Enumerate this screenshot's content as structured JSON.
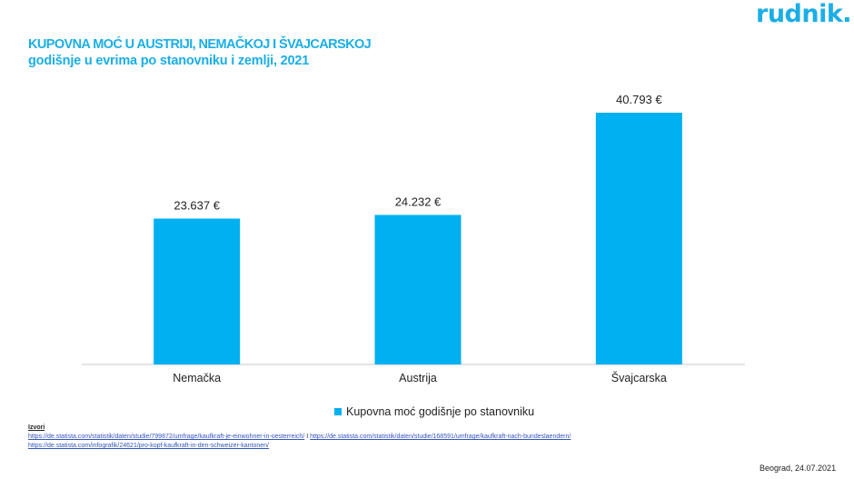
{
  "logo": "rudnik.",
  "title": "KUPOVNA MOĆ U AUSTRIJI, NEMAČKOJ I ŠVAJCARSKOJ",
  "subtitle": "godišnje u evrima po stanovniku i zemlji, 2021",
  "colors": {
    "accent": "#1aaee6",
    "bar": "#00b0f0",
    "axis": "#c8c8c8"
  },
  "chart_data": {
    "type": "bar",
    "categories": [
      "Nemačka",
      "Austrija",
      "Švajcarska"
    ],
    "series": [
      {
        "name": "Kupovna moć godišnje po stanovniku",
        "values": [
          23637,
          24232,
          40793
        ]
      }
    ],
    "data_labels": [
      "23.637 €",
      "24.232 €",
      "40.793 €"
    ],
    "ylim": [
      0,
      45000
    ],
    "grid": false,
    "legend": "bottom"
  },
  "legend_label": "Kupovna moć godišnje po stanovniku",
  "sources": {
    "label": "Izvori",
    "link1": "https://de.statista.com/statistik/daten/studie/799872/umfrage/kaufkraft-je-einwohner-in-oesterreich/",
    "separator": "I",
    "link2": "https://de.statista.com/statistik/daten/studie/168591/umfrage/kaufkraft-nach-bundeslaendern/",
    "link3": "https://de.statista.com/infografik/24621/pro-kopf-kaufkraft-in-den-schweizer-kantonen/"
  },
  "footer_date": "Beograd, 24.07.2021"
}
